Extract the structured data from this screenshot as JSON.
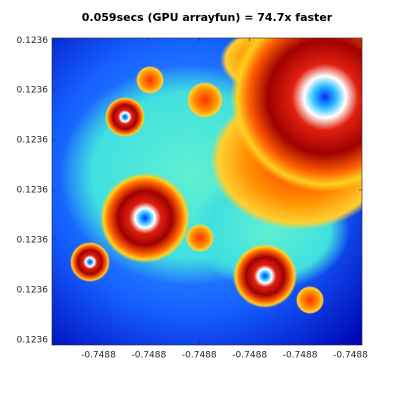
{
  "chart_data": {
    "type": "image",
    "title": "0.059secs (GPU arrayfun) = 74.7x faster",
    "xlim": [
      -0.748766713922161,
      -0.748766707771757
    ],
    "ylim": [
      0.123640844894862,
      0.123640851045266
    ],
    "xticks": [
      {
        "value": -0.748766713,
        "label": "-0.7488"
      },
      {
        "value": -0.748766712,
        "label": "-0.7488"
      },
      {
        "value": -0.748766711,
        "label": "-0.7488"
      },
      {
        "value": -0.74876671,
        "label": "-0.7488"
      },
      {
        "value": -0.748766709,
        "label": "-0.7488"
      },
      {
        "value": -0.748766708,
        "label": "-0.7488"
      }
    ],
    "yticks": [
      {
        "value": 0.123640845,
        "label": "0.1236"
      },
      {
        "value": 0.123640846,
        "label": "0.1236"
      },
      {
        "value": 0.123640847,
        "label": "0.1236"
      },
      {
        "value": 0.123640848,
        "label": "0.1236"
      },
      {
        "value": 0.123640849,
        "label": "0.1236"
      },
      {
        "value": 0.12364085,
        "label": "0.1236"
      },
      {
        "value": 0.123640851,
        "label": "0.1236"
      }
    ]
  }
}
